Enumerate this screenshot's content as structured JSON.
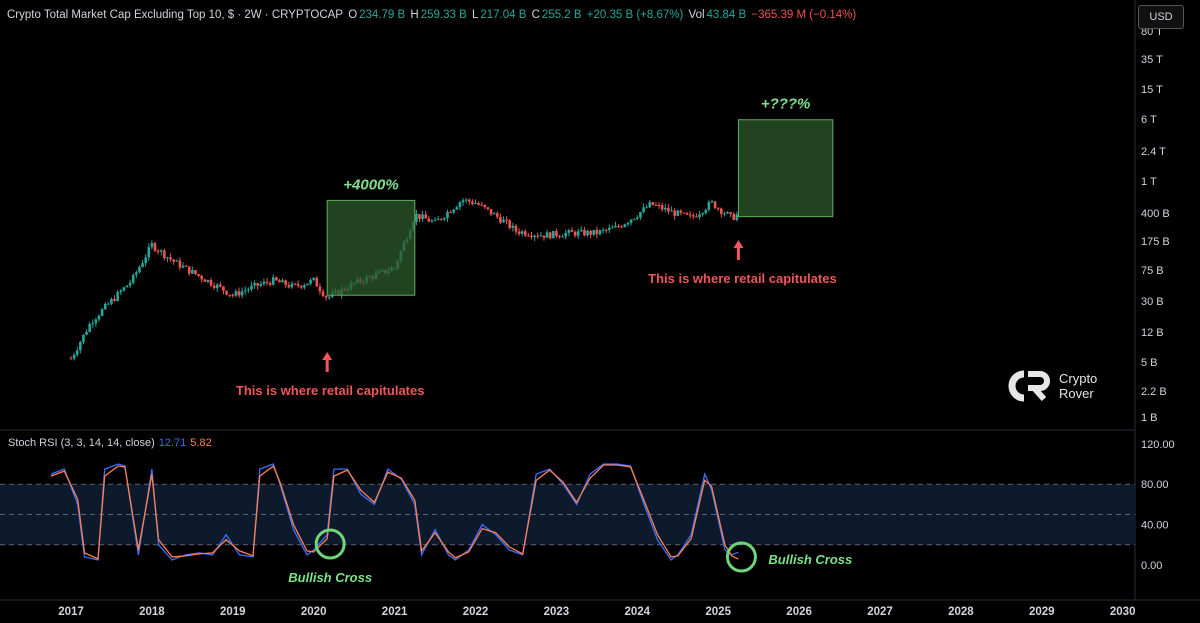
{
  "header": {
    "symbol_label": "Crypto Total Market Cap Excluding Top 10, $ · 2W · CRYPTOCAP",
    "o_label": "O",
    "o_value": "234.79 B",
    "h_label": "H",
    "h_value": "259.33 B",
    "l_label": "L",
    "l_value": "217.04 B",
    "c_label": "C",
    "c_value": "255.2 B",
    "change": "+20.35 B (+8.67%)",
    "vol_label": "Vol",
    "vol_value": "43.84 B",
    "vol_change": "−365.39 M (−0.14%)"
  },
  "currency_button": "USD",
  "logo": {
    "line1": "Crypto",
    "line2": "Rover"
  },
  "colors": {
    "up": "#26a69a",
    "down": "#ef5350",
    "box_fill": "#2e5a2a",
    "box_stroke": "#5fae5f",
    "annotation_green": "#7ee08a",
    "annotation_red": "#f0555a",
    "k_line": "#3b6fff",
    "d_line": "#ff7f50"
  },
  "chart_data": [
    {
      "type": "line",
      "title": "Crypto Total Market Cap Excluding Top 10",
      "interval": "2W",
      "scale": "log",
      "y_axis_ticks": [
        "80 T",
        "35 T",
        "15 T",
        "6 T",
        "2.4 T",
        "1 T",
        "400 B",
        "175 B",
        "75 B",
        "30 B",
        "12 B",
        "5 B",
        "2.2 B",
        "1 B"
      ],
      "x_axis_ticks": [
        "2017",
        "2018",
        "2019",
        "2020",
        "2021",
        "2022",
        "2023",
        "2024",
        "2025",
        "2026",
        "2027",
        "2028",
        "2029",
        "2030"
      ],
      "series": [
        {
          "x": [
            "2017-01",
            "2017-04",
            "2017-07",
            "2017-10",
            "2018-01",
            "2018-04",
            "2018-07",
            "2018-10",
            "2019-01",
            "2019-04",
            "2019-07",
            "2019-10",
            "2020-01",
            "2020-03",
            "2020-07",
            "2020-10",
            "2021-01",
            "2021-04",
            "2021-07",
            "2021-11",
            "2022-01",
            "2022-05",
            "2022-07",
            "2022-11",
            "2023-03",
            "2023-07",
            "2023-10",
            "2024-01",
            "2024-03",
            "2024-06",
            "2024-09",
            "2024-12",
            "2025-03",
            "2025-04"
          ],
          "y": [
            0.8,
            3.5,
            8,
            18,
            75,
            40,
            25,
            16,
            10,
            14,
            18,
            14,
            18,
            9,
            16,
            22,
            30,
            250,
            180,
            450,
            400,
            200,
            130,
            110,
            120,
            120,
            150,
            250,
            380,
            280,
            220,
            400,
            220,
            255
          ]
        }
      ],
      "annotations": [
        {
          "text": "+4000%",
          "from": "2020-03",
          "to": "2021-04",
          "y_low": 10,
          "y_high": 440
        },
        {
          "text": "+???%",
          "from": "2025-04",
          "to": "2026-06",
          "y_low": 230,
          "y_high": 11000
        },
        {
          "text": "This is where retail capitulates",
          "at": "2020-03"
        },
        {
          "text": "This is where retail capitulates",
          "at": "2025-04"
        }
      ]
    },
    {
      "type": "line",
      "title": "Stoch RSI (3, 3, 14, 14, close)",
      "k_value": "12.71",
      "d_value": "5.82",
      "y_axis_ticks": [
        "120.00",
        "80.00",
        "40.00",
        "0.00"
      ],
      "ylim": [
        -15,
        120
      ],
      "bands": [
        20,
        50,
        80
      ],
      "series": [
        {
          "name": "K",
          "x": [
            "2016-10",
            "2016-12",
            "2017-02",
            "2017-03",
            "2017-05",
            "2017-06",
            "2017-08",
            "2017-09",
            "2017-11",
            "2018-01",
            "2018-02",
            "2018-04",
            "2018-06",
            "2018-08",
            "2018-10",
            "2018-12",
            "2019-02",
            "2019-04",
            "2019-05",
            "2019-07",
            "2019-08",
            "2019-10",
            "2019-12",
            "2020-01",
            "2020-03",
            "2020-04",
            "2020-06",
            "2020-08",
            "2020-10",
            "2020-12",
            "2021-02",
            "2021-04",
            "2021-05",
            "2021-07",
            "2021-09",
            "2021-10",
            "2021-12",
            "2022-02",
            "2022-04",
            "2022-06",
            "2022-08",
            "2022-10",
            "2022-12",
            "2023-02",
            "2023-04",
            "2023-06",
            "2023-08",
            "2023-10",
            "2023-12",
            "2024-02",
            "2024-04",
            "2024-06",
            "2024-07",
            "2024-09",
            "2024-11",
            "2024-12",
            "2025-02",
            "2025-03",
            "2025-04"
          ],
          "values": [
            90,
            95,
            60,
            8,
            5,
            95,
            100,
            98,
            10,
            95,
            20,
            5,
            10,
            12,
            10,
            30,
            10,
            8,
            95,
            100,
            80,
            35,
            10,
            15,
            30,
            95,
            95,
            70,
            60,
            95,
            85,
            60,
            10,
            35,
            10,
            5,
            15,
            40,
            30,
            15,
            10,
            90,
            95,
            80,
            60,
            90,
            100,
            100,
            98,
            60,
            25,
            5,
            10,
            30,
            90,
            75,
            15,
            10,
            12.71
          ]
        },
        {
          "name": "D",
          "x": [
            "2016-10",
            "2016-12",
            "2017-02",
            "2017-03",
            "2017-05",
            "2017-06",
            "2017-08",
            "2017-09",
            "2017-11",
            "2018-01",
            "2018-02",
            "2018-04",
            "2018-06",
            "2018-08",
            "2018-10",
            "2018-12",
            "2019-02",
            "2019-04",
            "2019-05",
            "2019-07",
            "2019-08",
            "2019-10",
            "2019-12",
            "2020-01",
            "2020-03",
            "2020-04",
            "2020-06",
            "2020-08",
            "2020-10",
            "2020-12",
            "2021-02",
            "2021-04",
            "2021-05",
            "2021-07",
            "2021-09",
            "2021-10",
            "2021-12",
            "2022-02",
            "2022-04",
            "2022-06",
            "2022-08",
            "2022-10",
            "2022-12",
            "2023-02",
            "2023-04",
            "2023-06",
            "2023-08",
            "2023-10",
            "2023-12",
            "2024-02",
            "2024-04",
            "2024-06",
            "2024-07",
            "2024-09",
            "2024-11",
            "2024-12",
            "2025-02",
            "2025-03",
            "2025-04"
          ],
          "values": [
            88,
            93,
            65,
            12,
            6,
            88,
            98,
            97,
            15,
            90,
            25,
            8,
            9,
            11,
            12,
            25,
            14,
            9,
            88,
            98,
            82,
            40,
            14,
            13,
            26,
            88,
            94,
            74,
            62,
            92,
            86,
            64,
            14,
            32,
            13,
            7,
            13,
            36,
            32,
            18,
            11,
            84,
            94,
            82,
            62,
            86,
            99,
            99,
            97,
            64,
            30,
            8,
            9,
            26,
            84,
            78,
            20,
            9,
            5.82
          ]
        }
      ],
      "annotations": [
        {
          "text": "Bullish Cross",
          "at": "2020-03"
        },
        {
          "text": "Bullish Cross",
          "at": "2025-04"
        }
      ]
    }
  ]
}
